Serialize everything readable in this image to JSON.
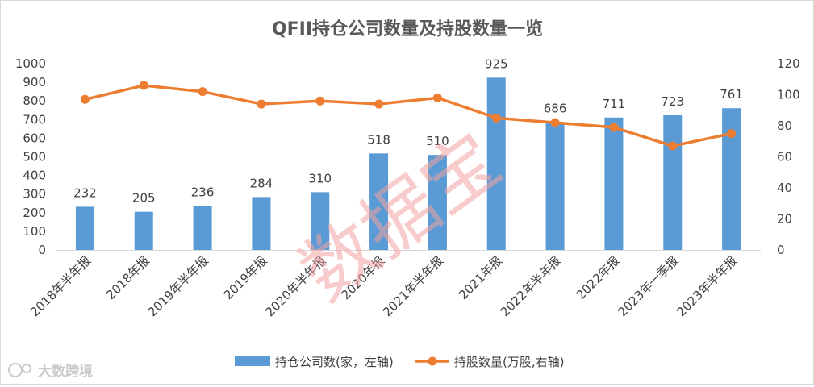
{
  "chart_data": {
    "type": "bar+line",
    "title": "QFII持仓公司数量及持股数量一览",
    "categories": [
      "2018年半年报",
      "2018年报",
      "2019年半年报",
      "2019年报",
      "2020年半年报",
      "2020年报",
      "2021年半年报",
      "2021年报",
      "2022年半年报",
      "2022年报",
      "2023年一季报",
      "2023年半年报"
    ],
    "series": [
      {
        "name": "持仓公司数(家，左轴)",
        "type": "bar",
        "axis": "left",
        "color": "#5b9bd5",
        "values": [
          232,
          205,
          236,
          284,
          310,
          518,
          510,
          925,
          686,
          711,
          723,
          761
        ],
        "labels": [
          "232",
          "205",
          "236",
          "284",
          "310",
          "518",
          "510",
          "925",
          "686",
          "711",
          "723",
          "761"
        ]
      },
      {
        "name": "持股数量(万股,右轴)",
        "type": "line",
        "axis": "right",
        "color": "#ed7d31",
        "values": [
          97,
          106,
          102,
          94,
          96,
          94,
          98,
          85,
          82,
          79,
          67,
          75
        ]
      }
    ],
    "left_axis": {
      "ylim": [
        0,
        1000
      ],
      "ticks": [
        "0",
        "100",
        "200",
        "300",
        "400",
        "500",
        "600",
        "700",
        "800",
        "900",
        "1000"
      ]
    },
    "right_axis": {
      "ylim": [
        0,
        120
      ],
      "ticks": [
        "0",
        "20",
        "40",
        "60",
        "80",
        "100",
        "120"
      ]
    },
    "grid": false,
    "legend_position": "bottom"
  },
  "watermark": "数据宝",
  "brand": "大数跨境"
}
